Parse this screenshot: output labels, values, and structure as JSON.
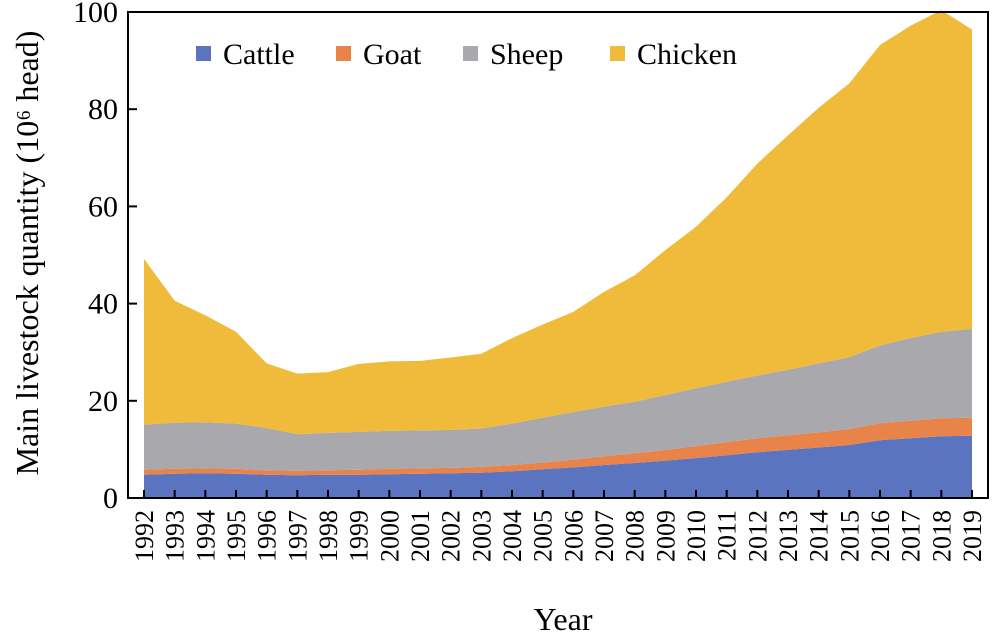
{
  "chart_data": {
    "type": "area",
    "stacked": true,
    "xlabel": "Year",
    "ylabel": "Main livestock quantity (10⁶ head)",
    "ylim": [
      0,
      100
    ],
    "yticks": [
      0,
      20,
      40,
      60,
      80,
      100
    ],
    "legend_position": "top-left",
    "categories": [
      "1992",
      "1993",
      "1994",
      "1995",
      "1996",
      "1997",
      "1998",
      "1999",
      "2000",
      "2001",
      "2002",
      "2003",
      "2004",
      "2005",
      "2006",
      "2007",
      "2008",
      "2009",
      "2010",
      "2011",
      "2012",
      "2013",
      "2014",
      "2015",
      "2016",
      "2017",
      "2018",
      "2019"
    ],
    "series": [
      {
        "name": "Cattle",
        "color": "#5b74c0",
        "values": [
          4.8,
          5.0,
          5.1,
          5.0,
          4.8,
          4.7,
          4.8,
          4.8,
          4.9,
          5.0,
          5.1,
          5.2,
          5.5,
          5.9,
          6.3,
          6.8,
          7.2,
          7.7,
          8.2,
          8.8,
          9.4,
          9.9,
          10.4,
          10.9,
          11.9,
          12.3,
          12.7,
          12.8
        ]
      },
      {
        "name": "Goat",
        "color": "#e8834a",
        "values": [
          1.0,
          1.0,
          1.0,
          1.0,
          0.9,
          0.9,
          0.9,
          1.0,
          1.1,
          1.1,
          1.1,
          1.2,
          1.3,
          1.4,
          1.6,
          1.8,
          2.0,
          2.2,
          2.5,
          2.7,
          2.9,
          3.0,
          3.1,
          3.3,
          3.5,
          3.6,
          3.7,
          3.7
        ]
      },
      {
        "name": "Sheep",
        "color": "#a8a8ad",
        "values": [
          9.3,
          9.5,
          9.5,
          9.3,
          8.7,
          7.5,
          7.7,
          7.8,
          7.8,
          7.8,
          7.8,
          7.9,
          8.5,
          9.2,
          9.8,
          10.2,
          10.6,
          11.3,
          11.9,
          12.4,
          12.9,
          13.5,
          14.2,
          14.8,
          16.0,
          17.0,
          17.8,
          18.3
        ]
      },
      {
        "name": "Chicken",
        "color": "#f0bb3a",
        "values": [
          34.1,
          25.1,
          22.0,
          18.9,
          13.3,
          12.5,
          12.5,
          14.0,
          14.3,
          14.3,
          14.9,
          15.4,
          17.6,
          19.2,
          20.6,
          23.6,
          26.0,
          29.8,
          33.2,
          38.0,
          43.6,
          48.2,
          52.6,
          56.3,
          61.8,
          64.3,
          66.2,
          61.6
        ]
      }
    ]
  }
}
